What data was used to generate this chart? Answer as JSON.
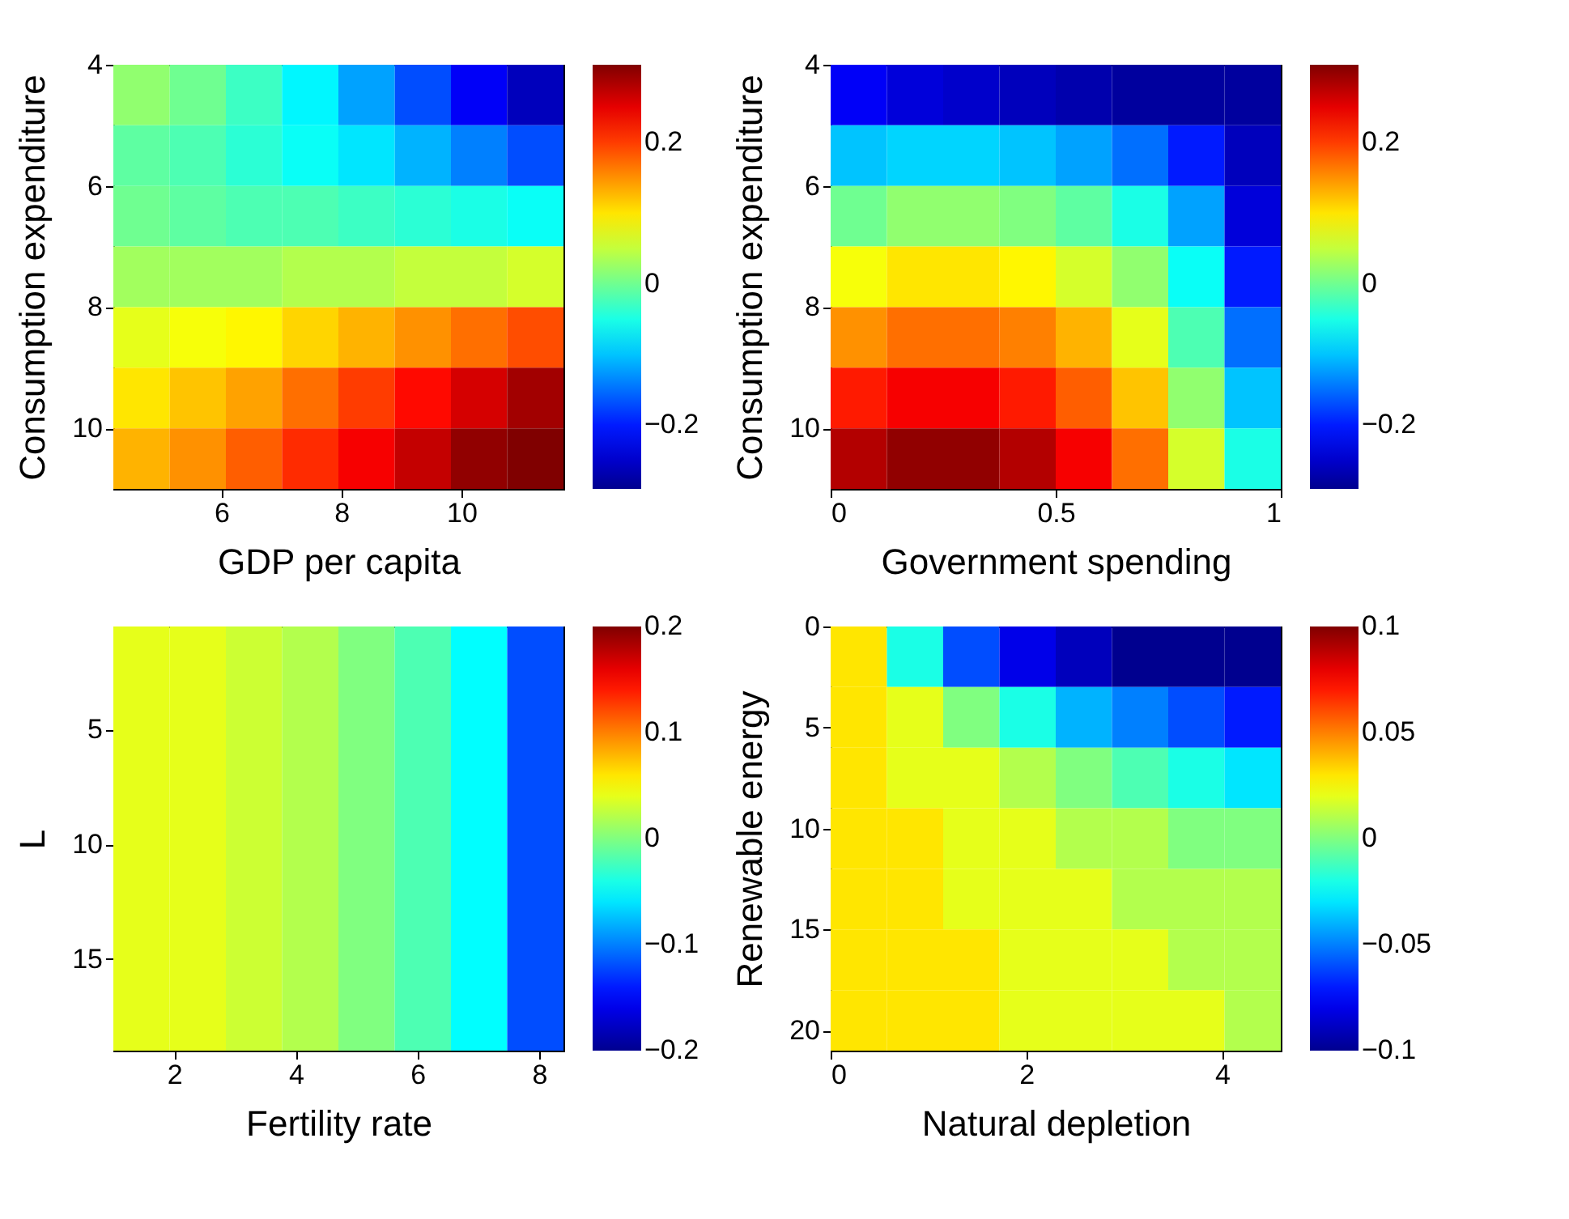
{
  "chart_data": [
    {
      "type": "heatmap",
      "xlabel": "GDP per capita",
      "ylabel": "Consumption expenditure",
      "x": [
        4.67,
        5.61,
        6.54,
        7.48,
        8.42,
        9.36,
        10.29,
        11.23
      ],
      "y": [
        4.5,
        5.5,
        6.5,
        7.5,
        8.5,
        9.5,
        10.5
      ],
      "xlim": [
        4.2,
        11.7
      ],
      "xticks": [
        6,
        8,
        10
      ],
      "ylim": [
        11,
        4
      ],
      "yticks": [
        4,
        6,
        8,
        10
      ],
      "clim": [
        -0.29,
        0.31
      ],
      "cticks": [
        -0.2,
        0,
        0.2
      ],
      "cells": [
        [
          0.02,
          0.0,
          -0.03,
          -0.07,
          -0.12,
          -0.17,
          -0.22,
          -0.26
        ],
        [
          -0.01,
          -0.02,
          -0.04,
          -0.06,
          -0.08,
          -0.11,
          -0.14,
          -0.17
        ],
        [
          0.0,
          -0.01,
          -0.02,
          -0.02,
          -0.03,
          -0.04,
          -0.05,
          -0.06
        ],
        [
          0.03,
          0.03,
          0.03,
          0.04,
          0.04,
          0.05,
          0.05,
          0.06
        ],
        [
          0.07,
          0.08,
          0.09,
          0.11,
          0.13,
          0.15,
          0.17,
          0.19
        ],
        [
          0.1,
          0.12,
          0.14,
          0.17,
          0.2,
          0.23,
          0.26,
          0.29
        ],
        [
          0.13,
          0.15,
          0.18,
          0.21,
          0.24,
          0.27,
          0.3,
          0.31
        ]
      ]
    },
    {
      "type": "heatmap",
      "xlabel": "Government spending",
      "ylabel": "Consumption expenditure",
      "x": [
        0.0625,
        0.1875,
        0.3125,
        0.4375,
        0.5625,
        0.6875,
        0.8125,
        0.9375
      ],
      "y": [
        4.5,
        5.5,
        6.5,
        7.5,
        8.5,
        9.5,
        10.5
      ],
      "xlim": [
        0,
        1
      ],
      "xticks": [
        0,
        0.5,
        1
      ],
      "ylim": [
        11,
        4
      ],
      "yticks": [
        4,
        6,
        8,
        10
      ],
      "clim": [
        -0.29,
        0.31
      ],
      "cticks": [
        -0.2,
        0,
        0.2
      ],
      "cells": [
        [
          -0.22,
          -0.24,
          -0.25,
          -0.26,
          -0.27,
          -0.28,
          -0.28,
          -0.28
        ],
        [
          -0.1,
          -0.09,
          -0.09,
          -0.1,
          -0.12,
          -0.15,
          -0.2,
          -0.26
        ],
        [
          0.0,
          0.02,
          0.02,
          0.01,
          -0.01,
          -0.05,
          -0.12,
          -0.24
        ],
        [
          0.08,
          0.1,
          0.1,
          0.09,
          0.06,
          0.02,
          -0.06,
          -0.2
        ],
        [
          0.15,
          0.17,
          0.17,
          0.16,
          0.13,
          0.07,
          -0.02,
          -0.15
        ],
        [
          0.22,
          0.24,
          0.24,
          0.22,
          0.18,
          0.12,
          0.02,
          -0.1
        ],
        [
          0.28,
          0.3,
          0.3,
          0.28,
          0.24,
          0.17,
          0.06,
          -0.05
        ]
      ]
    },
    {
      "type": "heatmap",
      "xlabel": "Fertility rate",
      "ylabel": "L",
      "x": [
        1.4625,
        2.3875,
        3.3125,
        4.2375,
        5.1625,
        6.0875,
        7.0125,
        7.9375
      ],
      "y": [
        2.8125,
        7.4375,
        12.0625,
        16.6875
      ],
      "xlim": [
        1,
        8.4
      ],
      "xticks": [
        2,
        4,
        6,
        8
      ],
      "ylim": [
        19,
        0.5
      ],
      "yticks": [
        5,
        10,
        15
      ],
      "clim": [
        -0.2,
        0.2
      ],
      "cticks": [
        -0.2,
        -0.1,
        0,
        0.1,
        0.2
      ],
      "cells": [
        [
          0.04,
          0.04,
          0.03,
          0.02,
          0.0,
          -0.02,
          -0.05,
          -0.12
        ],
        [
          0.04,
          0.04,
          0.03,
          0.02,
          0.0,
          -0.02,
          -0.05,
          -0.12
        ],
        [
          0.04,
          0.04,
          0.03,
          0.02,
          0.0,
          -0.02,
          -0.05,
          -0.12
        ],
        [
          0.04,
          0.04,
          0.03,
          0.02,
          0.0,
          -0.02,
          -0.05,
          -0.12
        ]
      ]
    },
    {
      "type": "heatmap",
      "xlabel": "Natural depletion",
      "ylabel": "Renewable energy",
      "x": [
        0.2875,
        0.8625,
        1.4375,
        2.0125,
        2.5875,
        3.1625,
        3.7375,
        4.3125
      ],
      "y": [
        1.5,
        4.5,
        7.5,
        10.5,
        13.5,
        16.5,
        19.5
      ],
      "xlim": [
        0,
        4.6
      ],
      "xticks": [
        0,
        2,
        4
      ],
      "ylim": [
        21,
        0
      ],
      "yticks": [
        0,
        5,
        10,
        15,
        20
      ],
      "clim": [
        -0.1,
        0.1
      ],
      "cticks": [
        -0.1,
        -0.05,
        0,
        0.05,
        0.1
      ],
      "cells": [
        [
          0.03,
          -0.02,
          -0.06,
          -0.08,
          -0.09,
          -0.1,
          -0.1,
          -0.1
        ],
        [
          0.03,
          0.02,
          0.0,
          -0.02,
          -0.04,
          -0.05,
          -0.06,
          -0.07
        ],
        [
          0.03,
          0.02,
          0.02,
          0.01,
          0.0,
          -0.01,
          -0.02,
          -0.03
        ],
        [
          0.03,
          0.03,
          0.02,
          0.02,
          0.01,
          0.01,
          0.0,
          0.0
        ],
        [
          0.03,
          0.03,
          0.02,
          0.02,
          0.02,
          0.01,
          0.01,
          0.01
        ],
        [
          0.03,
          0.03,
          0.03,
          0.02,
          0.02,
          0.02,
          0.01,
          0.01
        ],
        [
          0.03,
          0.03,
          0.03,
          0.02,
          0.02,
          0.02,
          0.02,
          0.01
        ]
      ]
    }
  ]
}
